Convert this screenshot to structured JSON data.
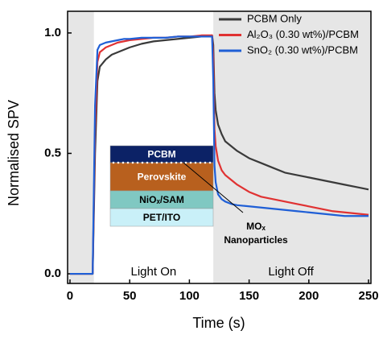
{
  "chart_data": {
    "type": "line",
    "x_label": "Time (s)",
    "y_label": "Normalised SPV",
    "x": [
      0,
      5,
      10,
      15,
      19,
      21,
      23,
      25,
      30,
      35,
      40,
      45,
      50,
      60,
      70,
      80,
      90,
      100,
      110,
      119,
      120,
      121,
      122,
      124,
      127,
      130,
      135,
      140,
      150,
      160,
      170,
      180,
      190,
      200,
      210,
      220,
      230,
      240,
      250
    ],
    "series": [
      {
        "name": "PCBM Only",
        "color": "#3a3a3a",
        "values": [
          0,
          0,
          0,
          0,
          0,
          0.5,
          0.8,
          0.86,
          0.89,
          0.91,
          0.92,
          0.93,
          0.94,
          0.955,
          0.965,
          0.97,
          0.975,
          0.98,
          0.985,
          0.99,
          0.95,
          0.75,
          0.68,
          0.62,
          0.58,
          0.55,
          0.53,
          0.51,
          0.48,
          0.46,
          0.44,
          0.42,
          0.41,
          0.4,
          0.39,
          0.38,
          0.37,
          0.36,
          0.35
        ]
      },
      {
        "name": "Al₂O₃ (0.30 wt%)/PCBM",
        "color": "#e03232",
        "values": [
          0,
          0,
          0,
          0,
          0,
          0.6,
          0.88,
          0.92,
          0.94,
          0.95,
          0.96,
          0.965,
          0.97,
          0.975,
          0.98,
          0.98,
          0.985,
          0.985,
          0.99,
          0.99,
          0.9,
          0.6,
          0.53,
          0.47,
          0.43,
          0.41,
          0.39,
          0.37,
          0.34,
          0.32,
          0.31,
          0.3,
          0.29,
          0.28,
          0.27,
          0.26,
          0.255,
          0.25,
          0.245
        ]
      },
      {
        "name": "SnO₂ (0.30 wt%)/PCBM",
        "color": "#1f5fd6",
        "values": [
          0,
          0,
          0,
          0,
          0,
          0.7,
          0.93,
          0.95,
          0.96,
          0.965,
          0.97,
          0.975,
          0.975,
          0.98,
          0.98,
          0.98,
          0.985,
          0.985,
          0.985,
          0.985,
          0.8,
          0.45,
          0.38,
          0.33,
          0.31,
          0.3,
          0.29,
          0.285,
          0.28,
          0.275,
          0.27,
          0.265,
          0.26,
          0.255,
          0.25,
          0.245,
          0.24,
          0.24,
          0.24
        ]
      }
    ],
    "xlim": [
      -2,
      252
    ],
    "ylim": [
      -0.04,
      1.09
    ],
    "xticks": [
      0,
      50,
      100,
      150,
      200,
      250
    ],
    "yticks": [
      {
        "value": 0,
        "label": "0.0"
      },
      0.5,
      {
        "value": 1,
        "label": "1.0"
      }
    ],
    "legend": "top-right",
    "shaded_regions": [
      [
        -2,
        20
      ],
      [
        120,
        252
      ]
    ],
    "annotations": [
      "Light On",
      "Light Off"
    ],
    "inset": {
      "layers": [
        "PCBM",
        "Perovskite",
        "NiOₓ/SAM",
        "PET/ITO"
      ],
      "callout": [
        "MOₓ",
        "Nanoparticles"
      ]
    }
  }
}
